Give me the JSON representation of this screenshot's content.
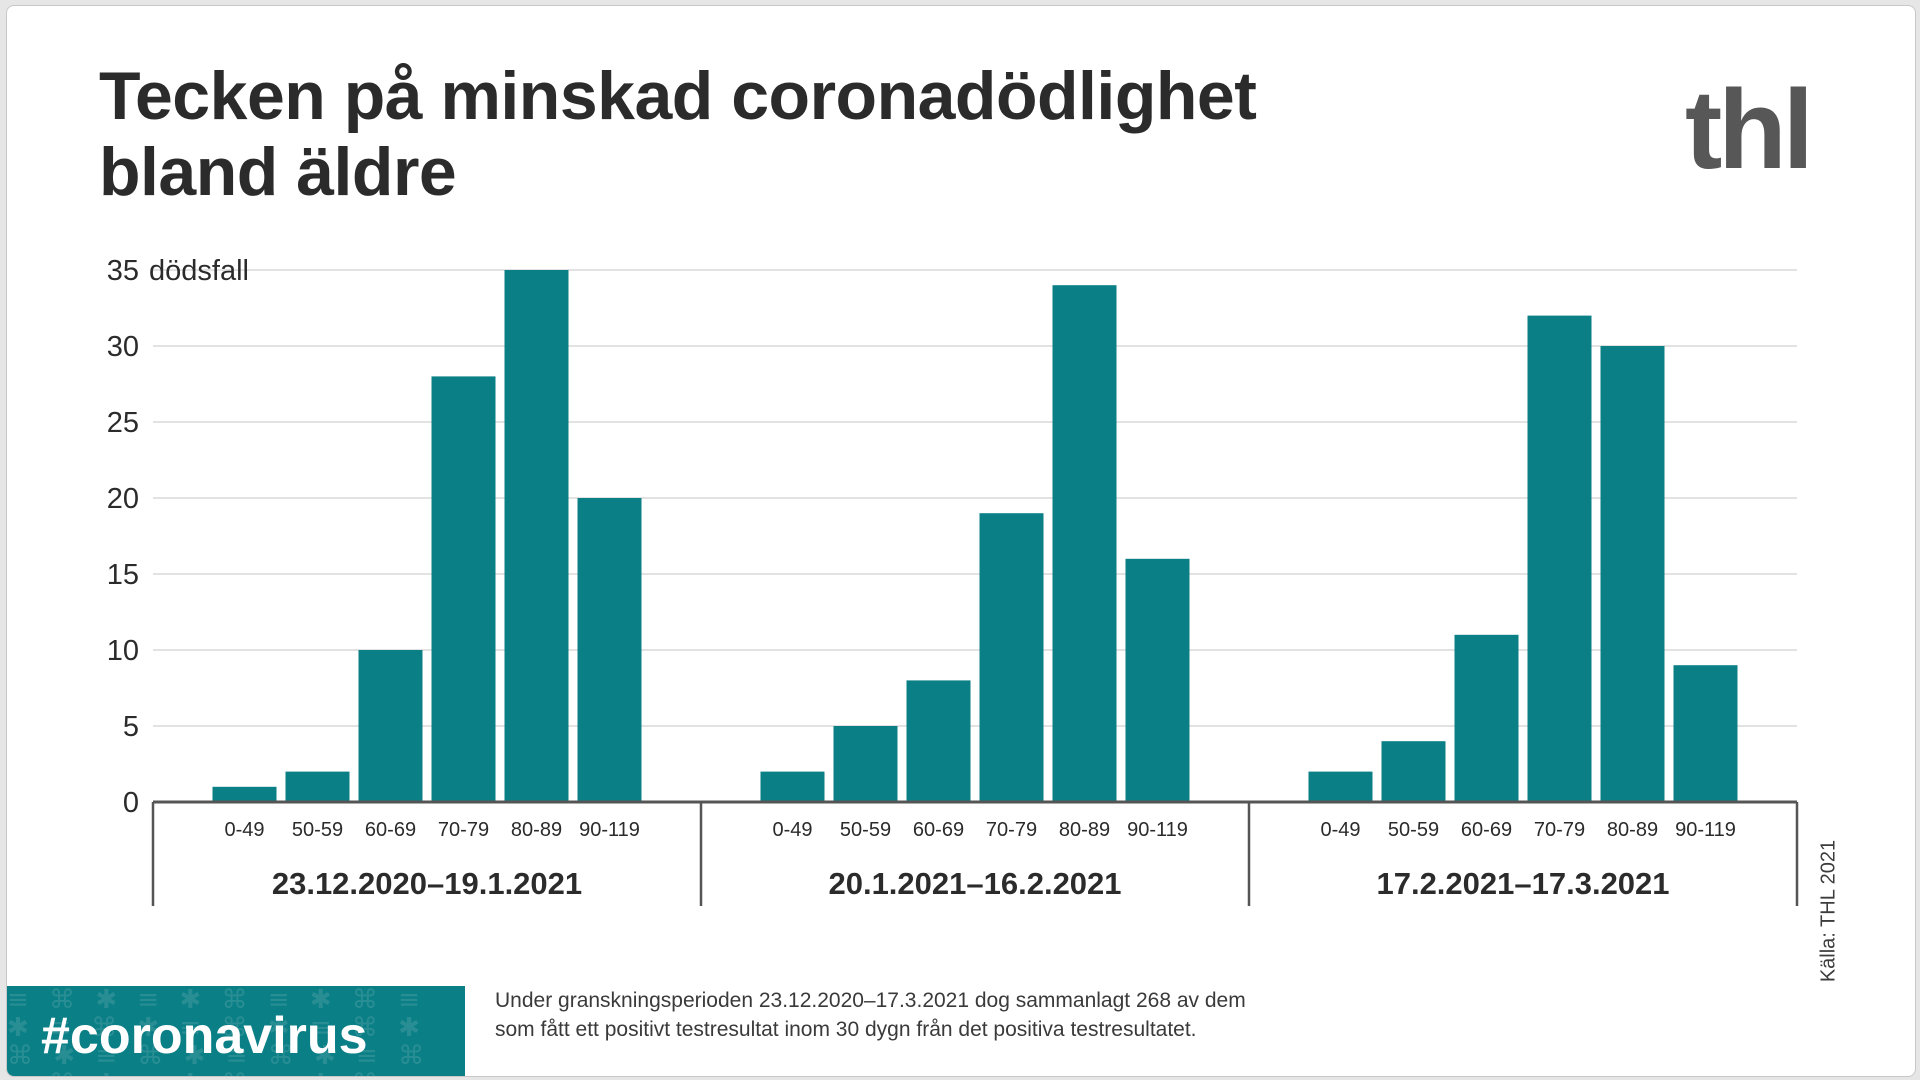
{
  "title_lines": [
    "Tecken på minskad coronadödlighet",
    "bland äldre"
  ],
  "logo": "thl",
  "source": "Källa: THL 2021",
  "hashtag": "#coronavirus",
  "note_lines": [
    "Under granskningsperioden 23.12.2020–17.3.2021 dog sammanlagt 268 av dem",
    "som fått ett positivt testresultat inom 30 dygn från det positiva testresultatet."
  ],
  "colors": {
    "bar": "#0b7f86",
    "title": "#2b2b2b",
    "logo": "#575757",
    "hashtag_bg": "#0b7f86"
  },
  "chart_data": {
    "type": "bar",
    "unit_label": "dödsfall",
    "ylim": [
      0,
      35
    ],
    "yticks": [
      0,
      5,
      10,
      15,
      20,
      25,
      30,
      35
    ],
    "grid": true,
    "categories": [
      "0-49",
      "50-59",
      "60-69",
      "70-79",
      "80-89",
      "90-119"
    ],
    "groups": [
      {
        "period": "23.12.2020–19.1.2021",
        "values": [
          1,
          2,
          10,
          28,
          35,
          20
        ]
      },
      {
        "period": "20.1.2021–16.2.2021",
        "values": [
          2,
          5,
          8,
          19,
          34,
          16
        ]
      },
      {
        "period": "17.2.2021–17.3.2021",
        "values": [
          2,
          4,
          11,
          32,
          30,
          9
        ]
      }
    ]
  }
}
